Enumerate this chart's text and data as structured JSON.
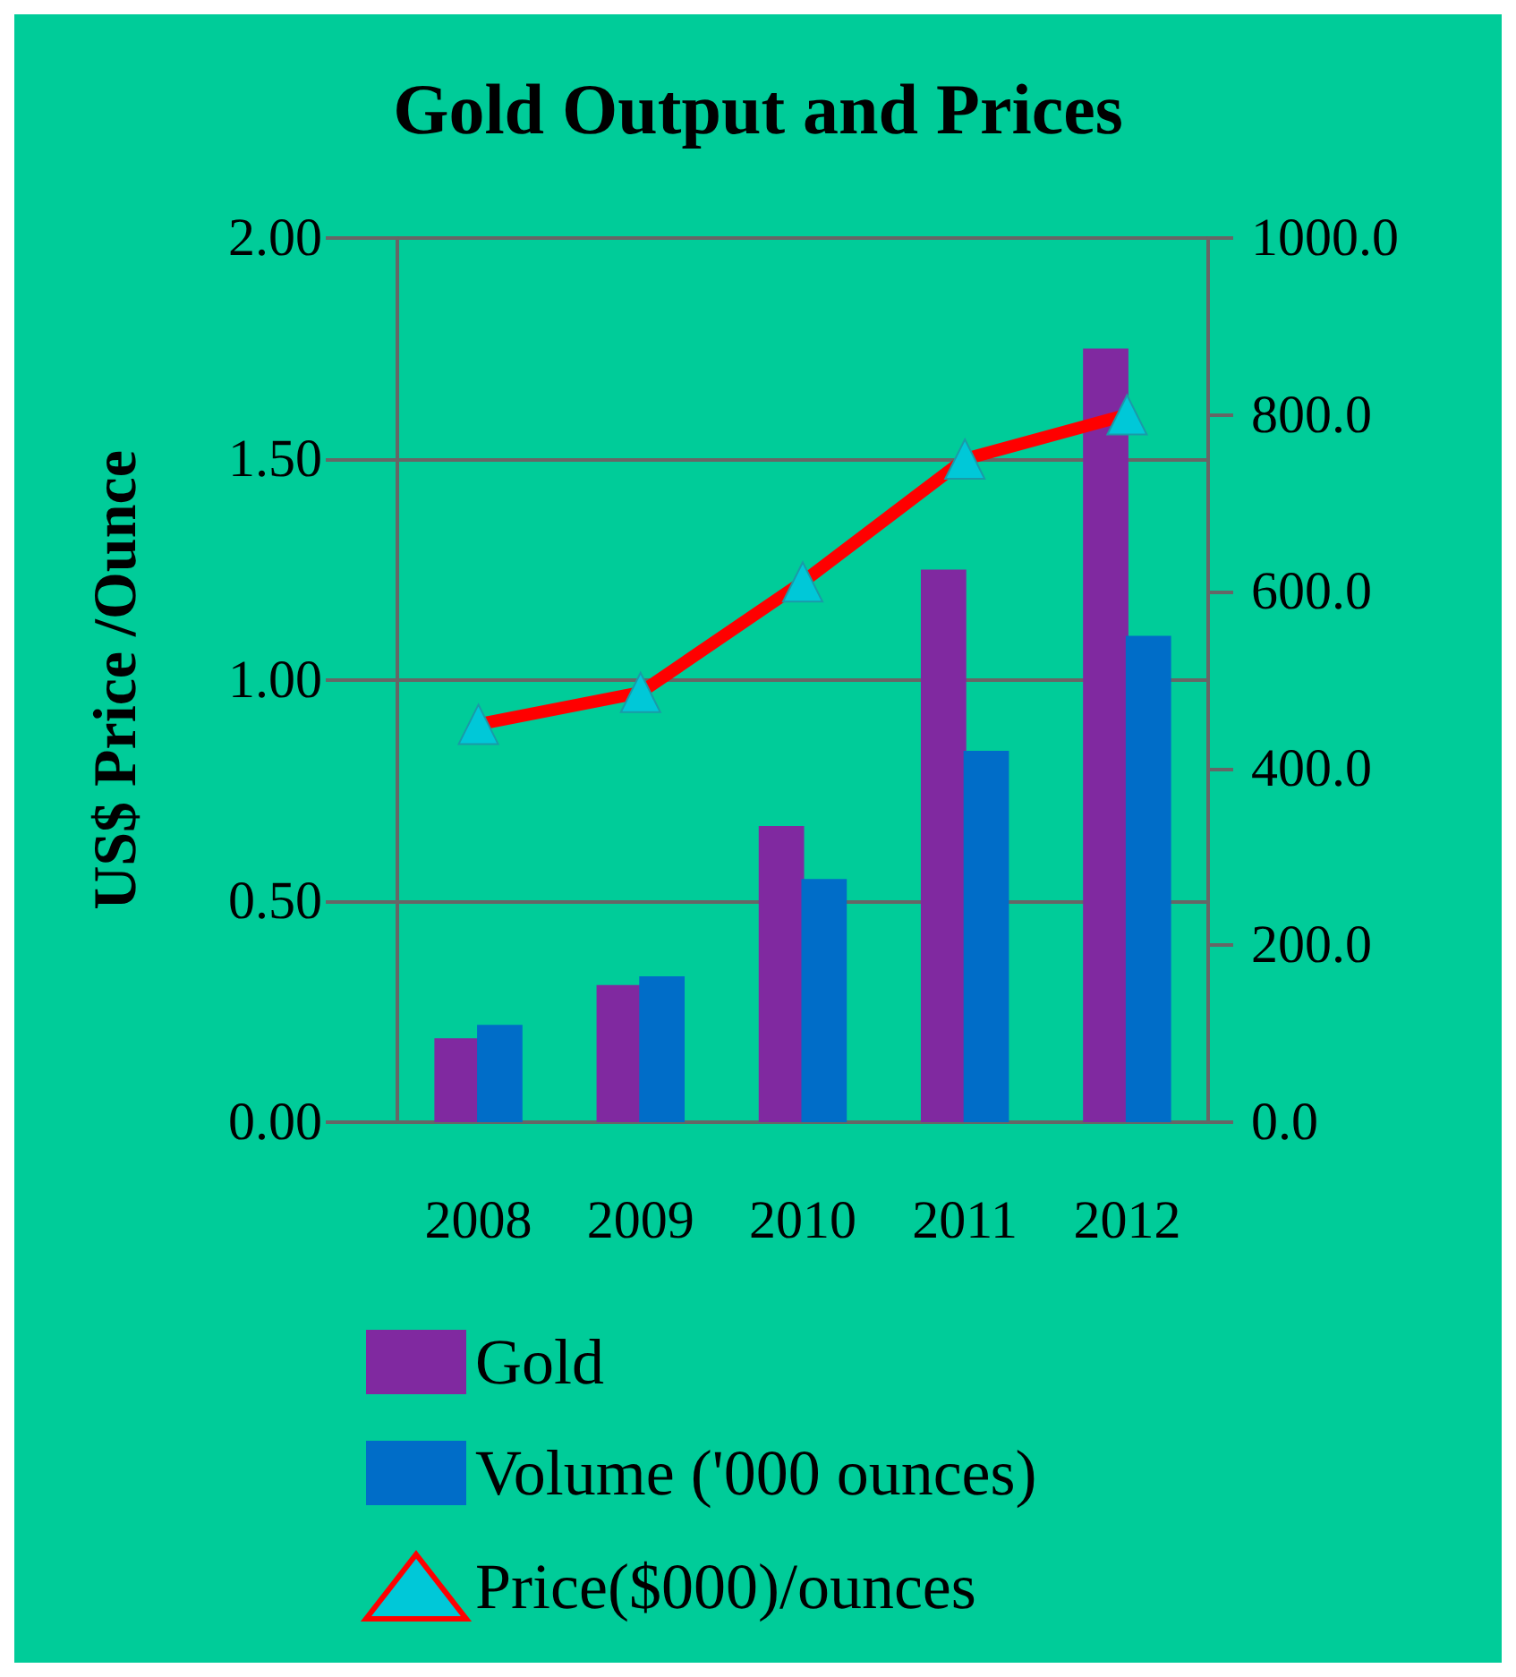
{
  "chart_data": {
    "type": "bar",
    "title": "Gold Output and Prices",
    "ylabel": "US$ Price /Ounce",
    "categories": [
      "2008",
      "2009",
      "2010",
      "2011",
      "2012"
    ],
    "series": [
      {
        "name": "Gold",
        "color": "#8029a0",
        "values": [
          0.19,
          0.31,
          0.67,
          1.25,
          1.75
        ]
      },
      {
        "name": "Volume ('000 ounces)",
        "color": "#006dc8",
        "values": [
          0.22,
          0.33,
          0.55,
          0.84,
          1.1
        ]
      },
      {
        "name": "Price($000)/ounces",
        "type": "line",
        "axis": "y2",
        "color": "#ff0000",
        "marker": "triangle",
        "values": [
          450,
          486,
          611,
          750,
          800
        ]
      }
    ],
    "ylim": [
      0,
      2
    ],
    "yticks": [
      {
        "value": 0,
        "label": "0.00"
      },
      {
        "value": 0.5,
        "label": "0.50"
      },
      {
        "value": 1,
        "label": "1.00"
      },
      {
        "value": 1.5,
        "label": "1.50"
      },
      {
        "value": 2,
        "label": "2.00"
      }
    ],
    "y2lim": [
      0,
      1000
    ],
    "y2ticks": [
      {
        "value": 0,
        "label": "0.0"
      },
      {
        "value": 200,
        "label": "200.0"
      },
      {
        "value": 400,
        "label": "400.0"
      },
      {
        "value": 600,
        "label": "600.0"
      },
      {
        "value": 800,
        "label": "800.0"
      },
      {
        "value": 1000,
        "label": "1000.0"
      }
    ],
    "grid": "y",
    "legend": "bottom"
  }
}
